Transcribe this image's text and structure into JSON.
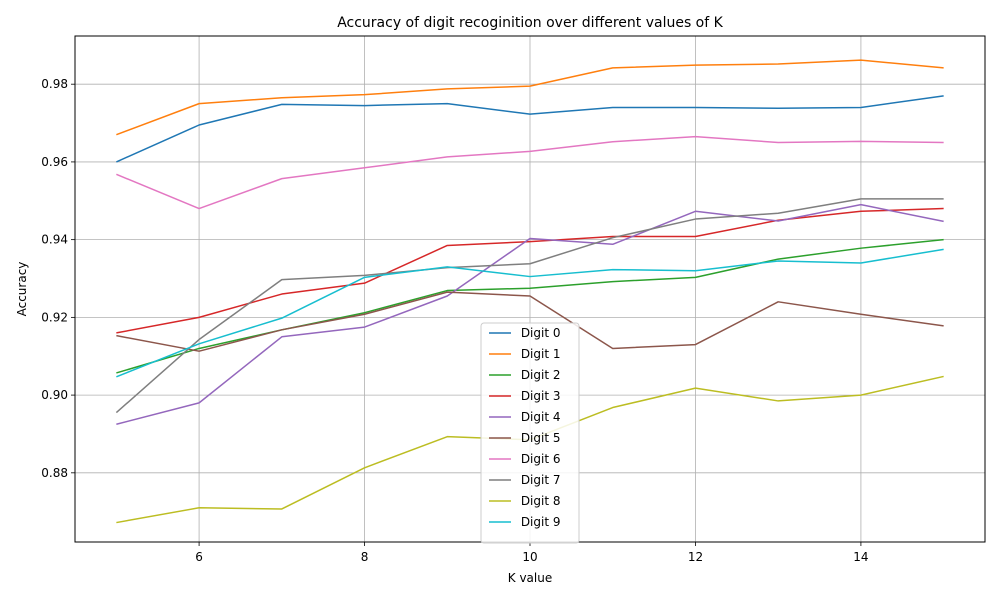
{
  "chart_data": {
    "type": "line",
    "title": "Accuracy of digit recoginition over different values of K",
    "xlabel": "K value",
    "ylabel": "Accuracy",
    "xlim": [
      4.5,
      15.5
    ],
    "ylim": [
      0.8622,
      0.9924
    ],
    "xticks": [
      6,
      8,
      10,
      12,
      14
    ],
    "yticks": [
      0.88,
      0.9,
      0.92,
      0.94,
      0.96,
      0.98
    ],
    "xtick_labels": [
      "6",
      "8",
      "10",
      "12",
      "14"
    ],
    "ytick_labels": [
      "0.88",
      "0.90",
      "0.92",
      "0.94",
      "0.96",
      "0.98"
    ],
    "grid": true,
    "legend_position": "lower-center",
    "x": [
      5,
      6,
      7,
      8,
      9,
      10,
      11,
      12,
      13,
      14,
      15
    ],
    "series": [
      {
        "name": " Digit 0",
        "color": "#1f77b4",
        "values": [
          0.96,
          0.9695,
          0.9748,
          0.9745,
          0.975,
          0.9723,
          0.974,
          0.974,
          0.9738,
          0.974,
          0.977
        ]
      },
      {
        "name": " Digit 1",
        "color": "#ff7f0e",
        "values": [
          0.967,
          0.975,
          0.9765,
          0.9773,
          0.9788,
          0.9795,
          0.9842,
          0.9849,
          0.9852,
          0.9862,
          0.9842
        ]
      },
      {
        "name": " Digit 2",
        "color": "#2ca02c",
        "values": [
          0.9057,
          0.912,
          0.9168,
          0.9212,
          0.9269,
          0.9275,
          0.9292,
          0.9303,
          0.935,
          0.9378,
          0.94
        ]
      },
      {
        "name": " Digit 3",
        "color": "#d62728",
        "values": [
          0.916,
          0.92,
          0.926,
          0.9288,
          0.9385,
          0.9395,
          0.9408,
          0.9408,
          0.945,
          0.9473,
          0.948
        ]
      },
      {
        "name": " Digit 4",
        "color": "#9467bd",
        "values": [
          0.8925,
          0.898,
          0.915,
          0.9175,
          0.9255,
          0.9403,
          0.9388,
          0.9473,
          0.9448,
          0.949,
          0.9447
        ]
      },
      {
        "name": " Digit 5",
        "color": "#8c564b",
        "values": [
          0.9153,
          0.9113,
          0.9168,
          0.9208,
          0.9265,
          0.9255,
          0.912,
          0.913,
          0.924,
          0.9208,
          0.9178
        ]
      },
      {
        "name": " Digit 6",
        "color": "#e377c2",
        "values": [
          0.9568,
          0.948,
          0.9557,
          0.9585,
          0.9613,
          0.9627,
          0.9652,
          0.9665,
          0.965,
          0.9653,
          0.965
        ]
      },
      {
        "name": " Digit 7",
        "color": "#7f7f7f",
        "values": [
          0.8955,
          0.9143,
          0.9297,
          0.9308,
          0.9328,
          0.9338,
          0.9405,
          0.9453,
          0.9468,
          0.9505,
          0.9505
        ]
      },
      {
        "name": " Digit 8",
        "color": "#bcbd22",
        "values": [
          0.8672,
          0.871,
          0.8707,
          0.8813,
          0.8893,
          0.8885,
          0.8968,
          0.9018,
          0.8985,
          0.9,
          0.9048
        ]
      },
      {
        "name": " Digit 9",
        "color": "#17becf",
        "values": [
          0.9047,
          0.9132,
          0.9198,
          0.9303,
          0.933,
          0.9305,
          0.9323,
          0.932,
          0.9345,
          0.934,
          0.9375
        ]
      }
    ]
  }
}
